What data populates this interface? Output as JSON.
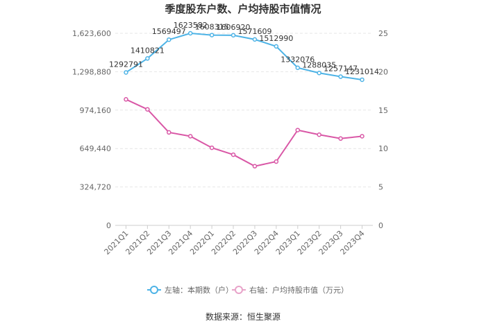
{
  "chart_data": {
    "type": "line",
    "title": "季度股东户数、户均持股市值情况",
    "categories": [
      "2021Q1",
      "2021Q2",
      "2021Q3",
      "2021Q4",
      "2022Q1",
      "2022Q2",
      "2022Q3",
      "2022Q4",
      "2023Q1",
      "2023Q2",
      "2023Q3",
      "2023Q4"
    ],
    "series": [
      {
        "name": "左轴：本期数（户）",
        "axis": "left",
        "color": "#4db3e6",
        "values": [
          1292791,
          1410821,
          1569497,
          1623582,
          1608315,
          1606920,
          1571609,
          1512990,
          1332076,
          1288035,
          1257147,
          1231014
        ],
        "labels": [
          "1292791",
          "1410821",
          "1569497",
          "1623582",
          "1608315",
          "1606920",
          "1571609",
          "1512990",
          "1332076",
          "1288035",
          "1257147",
          "1231014"
        ]
      },
      {
        "name": "右轴：户均持股市值（万元）",
        "axis": "right",
        "color": "#d957a6",
        "values": [
          16.4,
          15.1,
          12.1,
          11.6,
          10.1,
          9.2,
          7.7,
          8.3,
          12.4,
          11.8,
          11.3,
          11.6
        ]
      }
    ],
    "y_left": {
      "min": 0,
      "max": 1623600,
      "ticks": [
        0,
        324720,
        649440,
        974160,
        1298880,
        1623600
      ],
      "tick_labels": [
        "0",
        "324,720",
        "649,440",
        "974,160",
        "1,298,880",
        "1,623,600"
      ]
    },
    "y_right": {
      "min": 0,
      "max": 25,
      "ticks": [
        0,
        5,
        10,
        15,
        20,
        25
      ],
      "tick_labels": [
        "0",
        "5",
        "10",
        "15",
        "20",
        "25"
      ]
    },
    "grid": true,
    "legend_position": "bottom",
    "source": "数据来源：恒生聚源"
  }
}
